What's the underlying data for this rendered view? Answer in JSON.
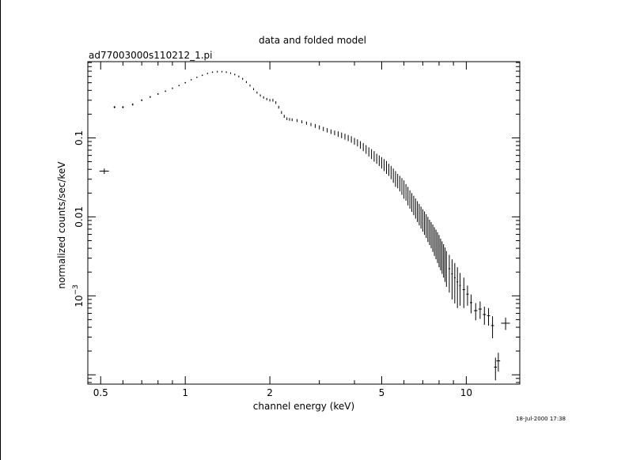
{
  "chart_data": {
    "type": "scatter",
    "title": "data and folded model",
    "subtitle": "ad77003000s110212_1.pi",
    "xlabel": "channel energy (keV)",
    "ylabel": "normalized counts/sec/keV",
    "x_scale": "log",
    "y_scale": "log",
    "xlim": [
      0.45,
      15.5
    ],
    "ylim": [
      7.62e-05,
      0.924
    ],
    "x_ticks": [
      {
        "value": 0.5,
        "label": "0.5"
      },
      {
        "value": 1,
        "label": "1"
      },
      {
        "value": 2,
        "label": "2"
      },
      {
        "value": 5,
        "label": "5"
      },
      {
        "value": 10,
        "label": "10"
      }
    ],
    "y_ticks": [
      {
        "value": 0.1,
        "label": "0.1"
      },
      {
        "value": 0.01,
        "label": "0.01"
      },
      {
        "value": 0.001,
        "label_base": "10",
        "label_exp": "−3"
      }
    ],
    "grid": false,
    "legend": "none",
    "series": [
      {
        "marker": "cross",
        "color": "#000000",
        "x": [
          0.515,
          0.56,
          0.6,
          0.65,
          0.7,
          0.75,
          0.8,
          0.85,
          0.9,
          0.95,
          1.0,
          1.05,
          1.1,
          1.15,
          1.2,
          1.25,
          1.3,
          1.35,
          1.4,
          1.45,
          1.5,
          1.55,
          1.6,
          1.65,
          1.7,
          1.75,
          1.8,
          1.85,
          1.9,
          1.95,
          2.0,
          2.05,
          2.1,
          2.15,
          2.2,
          2.25,
          2.3,
          2.35,
          2.4,
          2.5,
          2.6,
          2.7,
          2.8,
          2.9,
          3.0,
          3.1,
          3.2,
          3.3,
          3.4,
          3.5,
          3.6,
          3.7,
          3.8,
          3.9,
          4.0,
          4.1,
          4.2,
          4.3,
          4.4,
          4.5,
          4.6,
          4.7,
          4.8,
          4.9,
          5.0,
          5.1,
          5.2,
          5.3,
          5.4,
          5.5,
          5.6,
          5.7,
          5.8,
          5.9,
          6.0,
          6.1,
          6.2,
          6.3,
          6.4,
          6.5,
          6.6,
          6.7,
          6.8,
          6.9,
          7.0,
          7.1,
          7.2,
          7.3,
          7.4,
          7.5,
          7.6,
          7.7,
          7.8,
          7.9,
          8.0,
          8.1,
          8.2,
          8.3,
          8.4,
          8.5,
          8.7,
          8.9,
          9.1,
          9.3,
          9.5,
          9.8,
          10.1,
          10.4,
          10.8,
          11.2,
          11.6,
          12.0,
          12.4,
          12.7,
          13.0,
          13.8
        ],
        "y": [
          0.038,
          0.245,
          0.245,
          0.265,
          0.3,
          0.33,
          0.36,
          0.39,
          0.425,
          0.46,
          0.5,
          0.545,
          0.585,
          0.62,
          0.655,
          0.68,
          0.69,
          0.69,
          0.68,
          0.66,
          0.635,
          0.6,
          0.56,
          0.51,
          0.46,
          0.415,
          0.375,
          0.345,
          0.325,
          0.31,
          0.3,
          0.3,
          0.28,
          0.245,
          0.21,
          0.188,
          0.175,
          0.172,
          0.17,
          0.166,
          0.16,
          0.154,
          0.148,
          0.142,
          0.136,
          0.13,
          0.125,
          0.12,
          0.116,
          0.112,
          0.108,
          0.104,
          0.1,
          0.096,
          0.091,
          0.087,
          0.082,
          0.077,
          0.072,
          0.067,
          0.063,
          0.059,
          0.055,
          0.052,
          0.049,
          0.046,
          0.043,
          0.04,
          0.037,
          0.034,
          0.031,
          0.029,
          0.027,
          0.025,
          0.023,
          0.021,
          0.019,
          0.0172,
          0.0158,
          0.0145,
          0.0133,
          0.0122,
          0.0112,
          0.0103,
          0.0095,
          0.0088,
          0.0081,
          0.0074,
          0.0068,
          0.0063,
          0.0058,
          0.0053,
          0.0049,
          0.0045,
          0.0041,
          0.0037,
          0.0034,
          0.0031,
          0.0028,
          0.0025,
          0.0022,
          0.0019,
          0.0017,
          0.0015,
          0.00135,
          0.0012,
          0.00105,
          0.00082,
          0.00065,
          0.00068,
          0.00058,
          0.00056,
          0.00042,
          0.000125,
          0.00015,
          0.00045
        ],
        "y_err": [
          0.003,
          0.008,
          0.008,
          0.008,
          0.008,
          0.008,
          0.008,
          0.008,
          0.009,
          0.009,
          0.01,
          0.01,
          0.011,
          0.012,
          0.013,
          0.014,
          0.015,
          0.015,
          0.015,
          0.015,
          0.015,
          0.015,
          0.015,
          0.014,
          0.013,
          0.012,
          0.011,
          0.011,
          0.011,
          0.011,
          0.011,
          0.012,
          0.011,
          0.01,
          0.009,
          0.008,
          0.007,
          0.007,
          0.007,
          0.007,
          0.007,
          0.007,
          0.007,
          0.008,
          0.008,
          0.008,
          0.008,
          0.008,
          0.008,
          0.009,
          0.009,
          0.009,
          0.009,
          0.009,
          0.009,
          0.009,
          0.009,
          0.009,
          0.009,
          0.009,
          0.009,
          0.009,
          0.008,
          0.008,
          0.008,
          0.008,
          0.008,
          0.007,
          0.007,
          0.007,
          0.007,
          0.006,
          0.006,
          0.006,
          0.006,
          0.005,
          0.005,
          0.0045,
          0.0042,
          0.004,
          0.0038,
          0.0036,
          0.0034,
          0.0032,
          0.003,
          0.0029,
          0.0027,
          0.0026,
          0.0024,
          0.0023,
          0.0022,
          0.0021,
          0.002,
          0.0019,
          0.0018,
          0.0016,
          0.0015,
          0.0014,
          0.0013,
          0.0012,
          0.0011,
          0.001,
          0.0009,
          0.0008,
          0.0006,
          0.0005,
          0.0003,
          0.00022,
          0.00016,
          0.00017,
          0.00015,
          0.00014,
          0.00013,
          4e-05,
          4e-05,
          8e-05
        ],
        "x_err": [
          0.02,
          0.004,
          0.004,
          0.004,
          0.004,
          0.004,
          0.004,
          0.004,
          0.004,
          0.004,
          0.005,
          0.005,
          0.005,
          0.005,
          0.005,
          0.005,
          0.005,
          0.005,
          0.005,
          0.005,
          0.005,
          0.005,
          0.005,
          0.005,
          0.005,
          0.005,
          0.005,
          0.005,
          0.005,
          0.005,
          0.005,
          0.005,
          0.005,
          0.005,
          0.005,
          0.005,
          0.005,
          0.005,
          0.005,
          0.005,
          0.005,
          0.005,
          0.005,
          0.005,
          0.005,
          0.005,
          0.005,
          0.005,
          0.005,
          0.005,
          0.005,
          0.005,
          0.005,
          0.005,
          0.005,
          0.005,
          0.005,
          0.005,
          0.005,
          0.005,
          0.005,
          0.005,
          0.005,
          0.005,
          0.005,
          0.005,
          0.005,
          0.005,
          0.005,
          0.005,
          0.005,
          0.005,
          0.005,
          0.005,
          0.005,
          0.005,
          0.005,
          0.005,
          0.005,
          0.005,
          0.005,
          0.005,
          0.005,
          0.005,
          0.005,
          0.005,
          0.005,
          0.005,
          0.005,
          0.005,
          0.005,
          0.005,
          0.005,
          0.005,
          0.005,
          0.005,
          0.005,
          0.005,
          0.005,
          0.005,
          0.06,
          0.06,
          0.06,
          0.06,
          0.06,
          0.1,
          0.1,
          0.1,
          0.15,
          0.15,
          0.15,
          0.15,
          0.15,
          0.15,
          0.2,
          0.5
        ]
      }
    ]
  },
  "timestamp": "18-Jul-2000 17:38"
}
